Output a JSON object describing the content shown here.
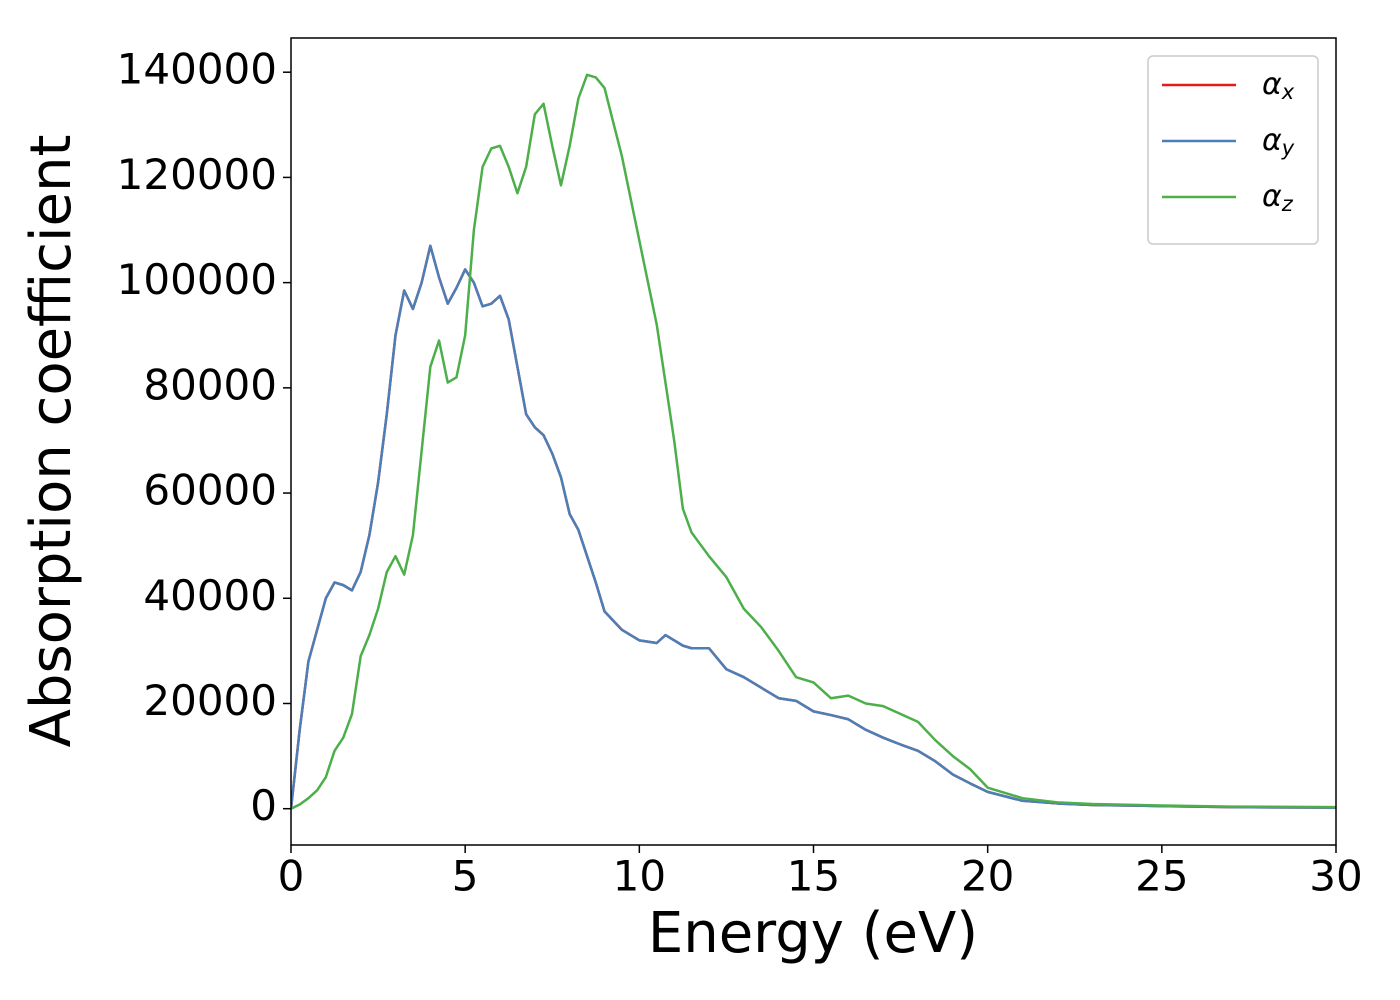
{
  "chart_data": {
    "type": "line",
    "xlabel": "Energy (eV)",
    "ylabel": "Absorption coefficient",
    "x": [
      0,
      0.25,
      0.5,
      0.75,
      1,
      1.25,
      1.5,
      1.75,
      2,
      2.25,
      2.5,
      2.75,
      3,
      3.25,
      3.5,
      3.75,
      4,
      4.25,
      4.5,
      4.75,
      5,
      5.25,
      5.5,
      5.75,
      6,
      6.25,
      6.5,
      6.75,
      7,
      7.25,
      7.5,
      7.75,
      8,
      8.25,
      8.5,
      8.75,
      9,
      9.5,
      10,
      10.5,
      10.75,
      11,
      11.25,
      11.5,
      12,
      12.5,
      13,
      13.5,
      14,
      14.5,
      15,
      15.5,
      16,
      16.5,
      17,
      17.5,
      18,
      18.5,
      19,
      19.5,
      20,
      21,
      22,
      23,
      25,
      27,
      30
    ],
    "series": [
      {
        "name": "αx",
        "color": "#e41a1c",
        "values": [
          0,
          15000,
          28000,
          34000,
          40000,
          43000,
          42500,
          41500,
          45000,
          52000,
          62000,
          75000,
          90000,
          98500,
          95000,
          100000,
          107000,
          101000,
          96000,
          99000,
          102500,
          100000,
          95500,
          96000,
          97500,
          93000,
          84000,
          75000,
          72500,
          71000,
          67500,
          63000,
          56000,
          53000,
          48000,
          43000,
          37500,
          34000,
          32000,
          31500,
          33000,
          32000,
          31000,
          30500,
          30500,
          26500,
          25000,
          23000,
          21000,
          20500,
          18500,
          17800,
          17000,
          15000,
          13500,
          12200,
          11000,
          9000,
          6500,
          4800,
          3200,
          1500,
          1000,
          700,
          500,
          300,
          200
        ]
      },
      {
        "name": "αy",
        "color": "#4a7fb8",
        "values": [
          0,
          15000,
          28000,
          34000,
          40000,
          43000,
          42500,
          41500,
          45000,
          52000,
          62000,
          75000,
          90000,
          98500,
          95000,
          100000,
          107000,
          101000,
          96000,
          99000,
          102500,
          100000,
          95500,
          96000,
          97500,
          93000,
          84000,
          75000,
          72500,
          71000,
          67500,
          63000,
          56000,
          53000,
          48000,
          43000,
          37500,
          34000,
          32000,
          31500,
          33000,
          32000,
          31000,
          30500,
          30500,
          26500,
          25000,
          23000,
          21000,
          20500,
          18500,
          17800,
          17000,
          15000,
          13500,
          12200,
          11000,
          9000,
          6500,
          4800,
          3200,
          1500,
          1000,
          700,
          500,
          300,
          200
        ]
      },
      {
        "name": "αz",
        "color": "#4daf4a",
        "values": [
          0,
          800,
          2000,
          3500,
          6000,
          11000,
          13500,
          18000,
          29000,
          33000,
          38000,
          45000,
          48000,
          44500,
          52000,
          68000,
          84000,
          89000,
          81000,
          82000,
          90000,
          110000,
          122000,
          125500,
          126000,
          122000,
          117000,
          122000,
          132000,
          134000,
          126000,
          118500,
          126000,
          135000,
          139500,
          139000,
          137000,
          124000,
          108000,
          92000,
          81000,
          70000,
          57000,
          52500,
          48000,
          44000,
          38000,
          34500,
          30000,
          25000,
          24000,
          21000,
          21500,
          20000,
          19500,
          18000,
          16500,
          13000,
          10000,
          7500,
          4000,
          2000,
          1200,
          900,
          600,
          400,
          300
        ]
      }
    ],
    "xlim": [
      0,
      30
    ],
    "xticks": [
      0,
      5,
      10,
      15,
      20,
      25,
      30
    ],
    "ylim": [
      -6900,
      146500
    ],
    "yticks": [
      0,
      20000,
      40000,
      60000,
      80000,
      100000,
      120000,
      140000
    ],
    "legend": "upper right"
  }
}
